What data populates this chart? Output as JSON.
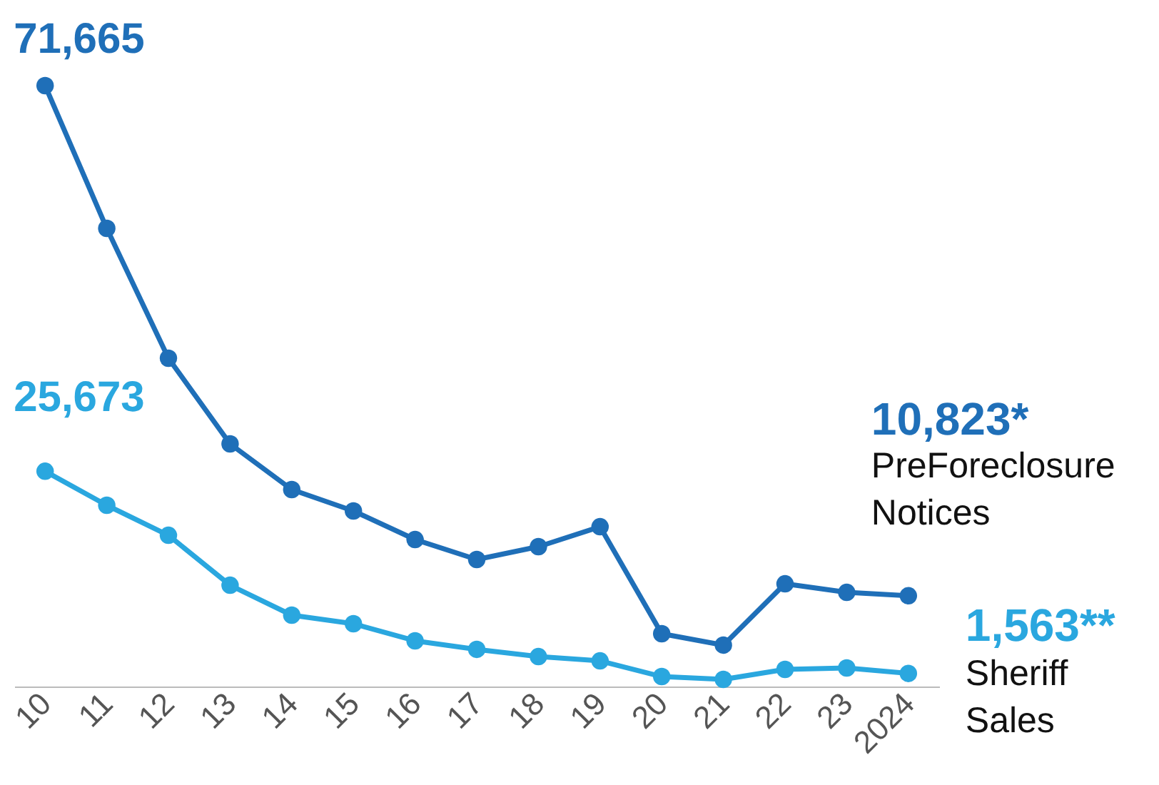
{
  "chart_data": {
    "type": "line",
    "categories": [
      "10",
      "11",
      "12",
      "13",
      "14",
      "15",
      "16",
      "17",
      "18",
      "19",
      "20",
      "21",
      "22",
      "23",
      "2024"
    ],
    "marker": "circle",
    "series": [
      {
        "name": "PreForeclosure Notices",
        "color": "#1f6fb8",
        "values": [
          71665,
          54640,
          39150,
          28940,
          23490,
          20940,
          17530,
          15150,
          16680,
          19060,
          6300,
          4940,
          12250,
          11230,
          10823
        ],
        "value_labels": [
          "71,665",
          null,
          null,
          null,
          null,
          null,
          null,
          null,
          null,
          null,
          null,
          null,
          null,
          null,
          "10,823*"
        ]
      },
      {
        "name": "Sheriff Sales",
        "color": "#2aa7df",
        "values": [
          25673,
          21620,
          18040,
          12080,
          8510,
          7490,
          5450,
          4430,
          3570,
          3060,
          1190,
          850,
          2040,
          2210,
          1563
        ],
        "value_labels": [
          "25,673",
          null,
          null,
          null,
          null,
          null,
          null,
          null,
          null,
          null,
          null,
          null,
          null,
          null,
          "1,563**"
        ]
      }
    ]
  }
}
